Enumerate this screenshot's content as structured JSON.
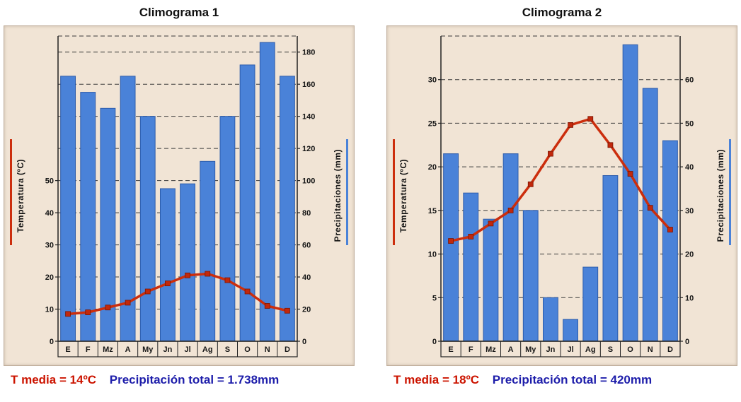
{
  "colors": {
    "panel_bg": "#f1e4d5",
    "bar": "#4a82d8",
    "bar_edge": "#2d5cab",
    "line": "#cc2e0d",
    "marker": "#c1280c",
    "caption_red": "#cc1400",
    "caption_blue": "#1d1daa"
  },
  "chart_data": [
    {
      "type": "combo",
      "title": "Climograma 1",
      "categories": [
        "E",
        "F",
        "Mz",
        "A",
        "My",
        "Jn",
        "Jl",
        "Ag",
        "S",
        "O",
        "N",
        "D"
      ],
      "series": [
        {
          "name": "Precipitaciones (mm)",
          "type": "bar",
          "axis": "right",
          "values": [
            165,
            155,
            145,
            165,
            140,
            95,
            98,
            112,
            140,
            172,
            186,
            165
          ]
        },
        {
          "name": "Temperatura (ºC)",
          "type": "line",
          "axis": "left",
          "values": [
            8.5,
            9,
            10.5,
            12,
            15.5,
            18,
            20.5,
            21,
            19,
            15.5,
            11,
            9.5
          ]
        }
      ],
      "left_axis": {
        "label": "Temperatura (ºC)",
        "ticks": [
          0,
          10,
          20,
          30,
          40,
          50
        ],
        "range": [
          0,
          95
        ]
      },
      "right_axis": {
        "label": "Precipitaciones (mm)",
        "ticks": [
          0,
          20,
          40,
          60,
          80,
          100,
          120,
          140,
          160,
          180
        ],
        "range": [
          0,
          190
        ]
      },
      "grid": "dashed-horizontal",
      "legend": "none",
      "caption": {
        "t_media": "T media = 14ºC",
        "precip_total": "Precipitación total = 1.738mm"
      }
    },
    {
      "type": "combo",
      "title": "Climograma 2",
      "categories": [
        "E",
        "F",
        "Mz",
        "A",
        "My",
        "Jn",
        "Jl",
        "Ag",
        "S",
        "O",
        "N",
        "D"
      ],
      "series": [
        {
          "name": "Precipitaciones (mm)",
          "type": "bar",
          "axis": "right",
          "values": [
            43,
            34,
            28,
            43,
            30,
            10,
            5,
            17,
            38,
            68,
            58,
            46
          ]
        },
        {
          "name": "Temperatura (ºC)",
          "type": "line",
          "axis": "left",
          "values": [
            11.5,
            12,
            13.5,
            15,
            18,
            21.5,
            24.8,
            25.5,
            22.5,
            19.2,
            15.3,
            12.8
          ]
        }
      ],
      "left_axis": {
        "label": "Temperatura (ºC)",
        "ticks": [
          0,
          5,
          10,
          15,
          20,
          25,
          30
        ],
        "range": [
          0,
          35
        ]
      },
      "right_axis": {
        "label": "Precipitaciones (mm)",
        "ticks": [
          0,
          10,
          20,
          30,
          40,
          50,
          60
        ],
        "range": [
          0,
          70
        ]
      },
      "grid": "dashed-horizontal",
      "legend": "none",
      "caption": {
        "t_media": "T media = 18ºC",
        "precip_total": "Precipitación total = 420mm"
      }
    }
  ]
}
